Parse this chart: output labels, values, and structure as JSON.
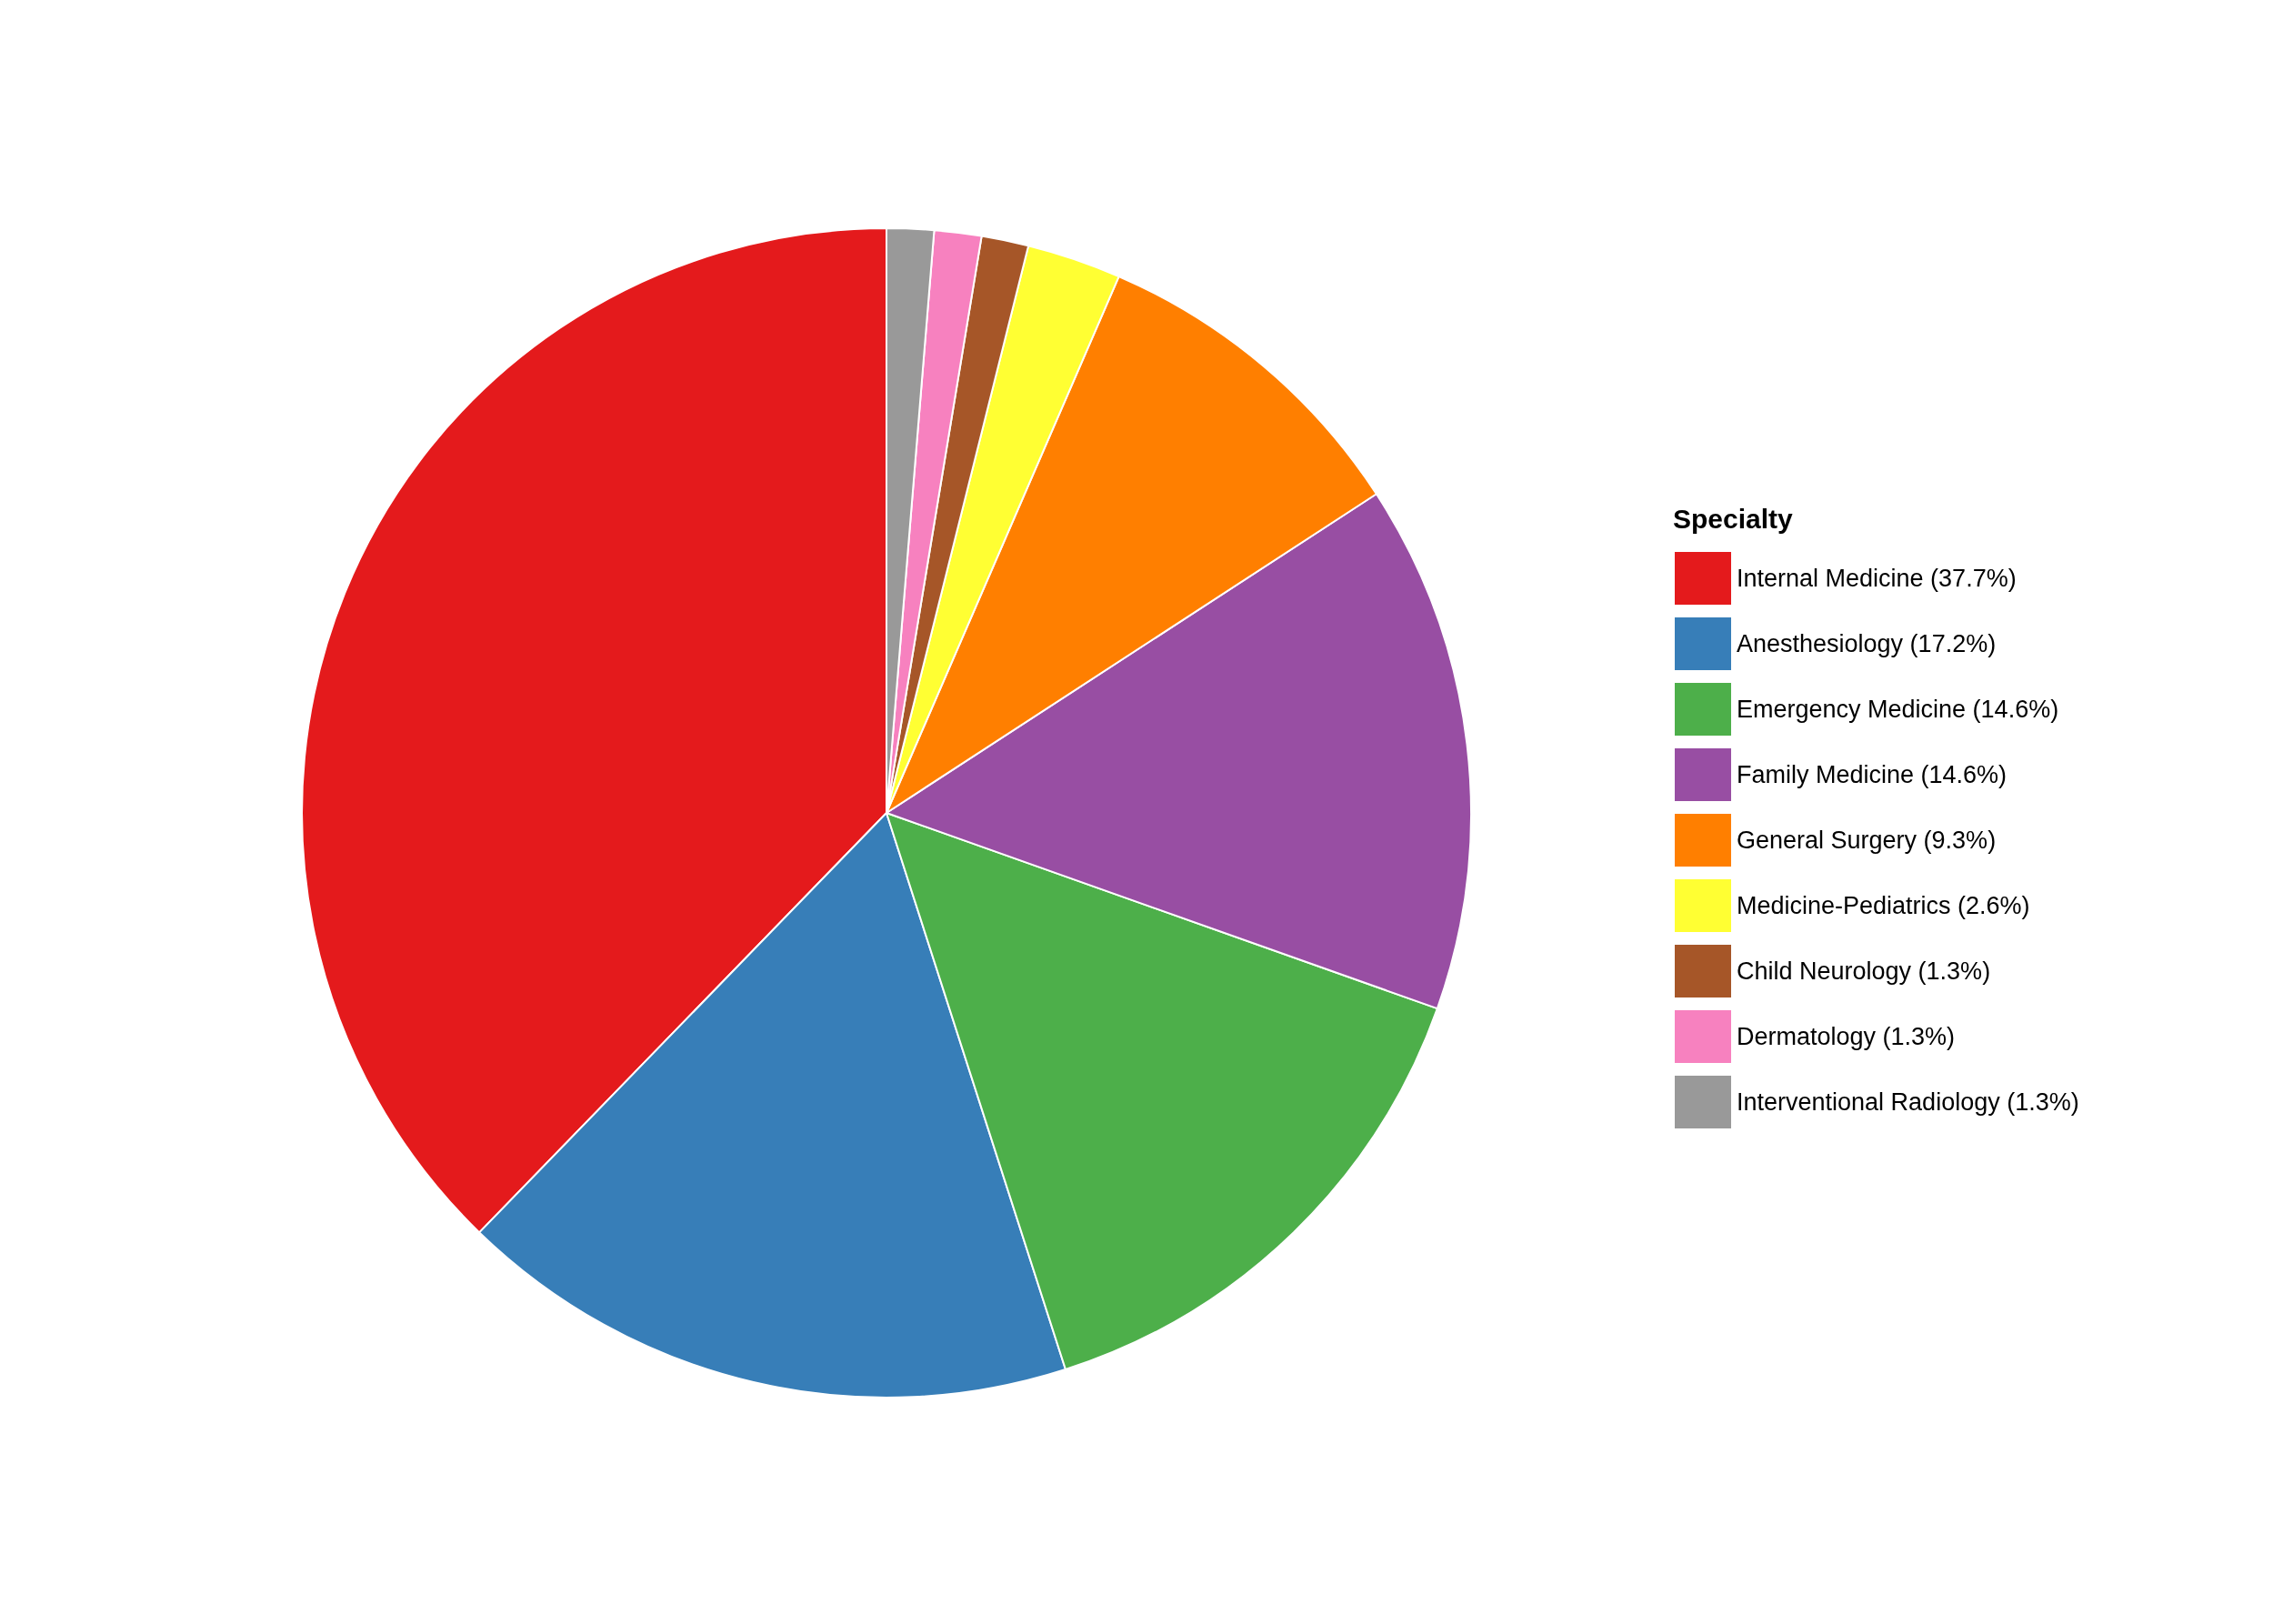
{
  "chart_data": {
    "type": "pie",
    "legend_title": "Specialty",
    "legend": "right",
    "categories": [
      "Internal Medicine (37.7%)",
      "Anesthesiology (17.2%)",
      "Emergency Medicine (14.6%)",
      "Family Medicine (14.6%)",
      "General Surgery (9.3%)",
      "Medicine-Pediatrics (2.6%)",
      "Child Neurology (1.3%)",
      "Dermatology (1.3%)",
      "Interventional Radiology (1.3%)"
    ],
    "values": [
      37.7,
      17.2,
      14.6,
      14.6,
      9.3,
      2.6,
      1.3,
      1.3,
      1.3
    ],
    "colors": [
      "#e41a1c",
      "#377eb8",
      "#4daf4a",
      "#984ea3",
      "#ff7f00",
      "#ffff33",
      "#a65628",
      "#f781bf",
      "#999999"
    ]
  }
}
